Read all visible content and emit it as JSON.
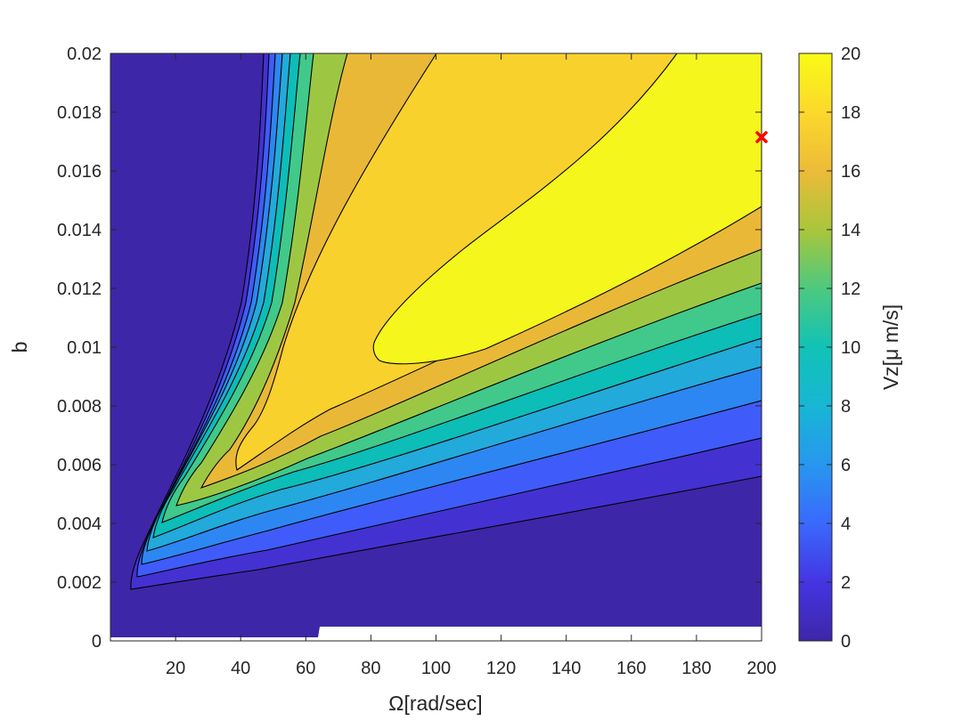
{
  "chart_data": {
    "type": "contour",
    "xlabel": "Ω[rad/sec]",
    "ylabel": "b",
    "xlim": [
      0,
      200
    ],
    "ylim": [
      0,
      0.02
    ],
    "x_ticks": [
      20,
      40,
      60,
      80,
      100,
      120,
      140,
      160,
      180,
      200
    ],
    "x_tick_labels": [
      "20",
      "40",
      "60",
      "80",
      "100",
      "120",
      "140",
      "160",
      "180",
      "200"
    ],
    "y_ticks": [
      0,
      0.002,
      0.004,
      0.006,
      0.008,
      0.01,
      0.012,
      0.014,
      0.016,
      0.018,
      0.02
    ],
    "y_tick_labels": [
      "0",
      "0.002",
      "0.004",
      "0.006",
      "0.008",
      "0.01",
      "0.012",
      "0.014",
      "0.016",
      "0.018",
      "0.02"
    ],
    "contour_levels": [
      0,
      1.8,
      3.6,
      5.4,
      7.2,
      9,
      10.8,
      12.6,
      14.4,
      16.2,
      18
    ],
    "level_colors": [
      "#3e26a8",
      "#4431d2",
      "#3f5cfa",
      "#2d87f2",
      "#22aadb",
      "#0dbdb7",
      "#40c98a",
      "#9dc743",
      "#eab837",
      "#f8d12d",
      "#f5f61c"
    ],
    "max_point": {
      "x": 200,
      "y": 0.01715,
      "marker": "x",
      "color": "#ff0000"
    },
    "colorbar": {
      "label": "Vz[μ m/s]",
      "range": [
        0,
        20
      ],
      "ticks": [
        0,
        2,
        4,
        6,
        8,
        10,
        12,
        14,
        16,
        18,
        20
      ],
      "tick_labels": [
        "0",
        "2",
        "4",
        "6",
        "8",
        "10",
        "12",
        "14",
        "16",
        "18",
        "20"
      ],
      "colormap": [
        "#3e26a8",
        "#4435e1",
        "#3a69fc",
        "#2797ef",
        "#18b6d4",
        "#12c2b6",
        "#4dc97f",
        "#a9c63b",
        "#edbb38",
        "#fcd82c",
        "#f9fb15"
      ]
    },
    "grid": false,
    "legend": "none"
  }
}
